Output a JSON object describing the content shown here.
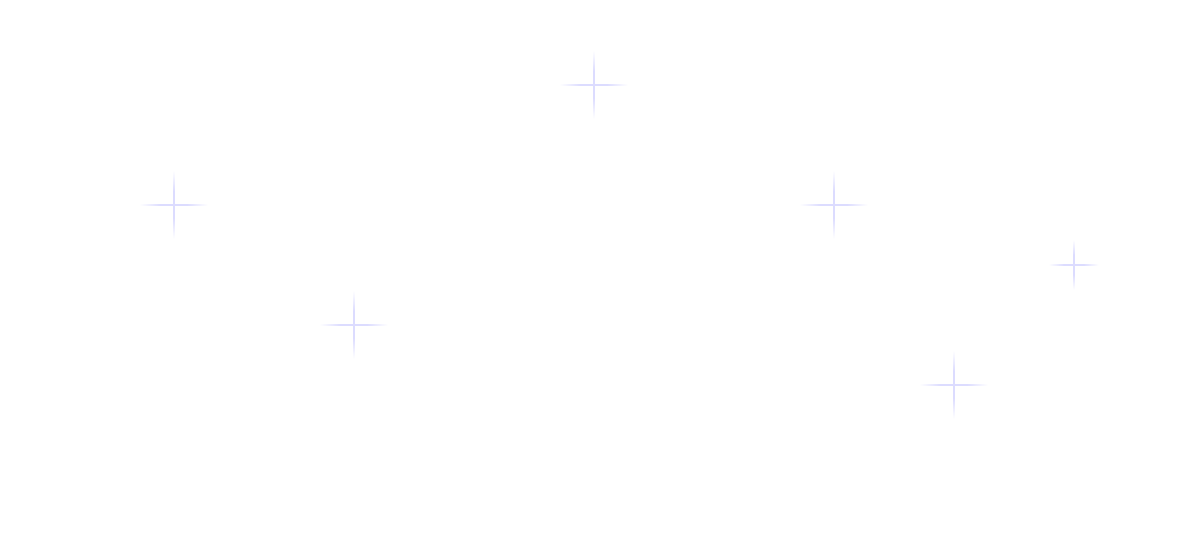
{
  "background": {
    "color": "#ffffff",
    "decoration": "plus-sparkle-icon",
    "accent_color": "#dcdcff"
  }
}
